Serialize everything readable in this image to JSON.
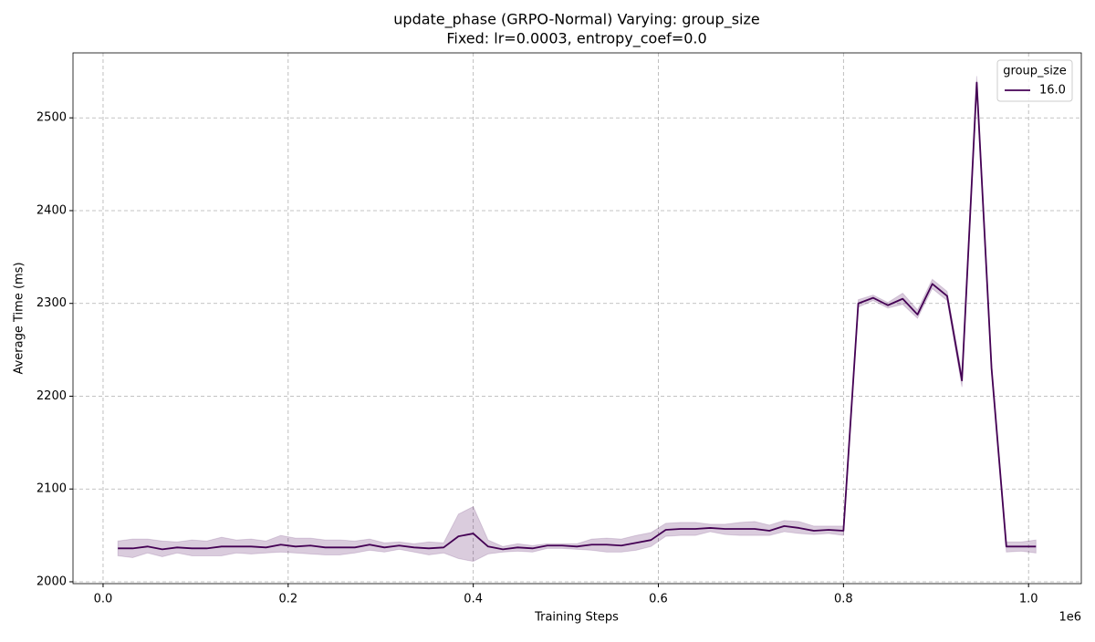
{
  "chart_data": {
    "type": "line",
    "title": "update_phase (GRPO-Normal) Varying: group_size",
    "subtitle": "Fixed: lr=0.0003, entropy_coef=0.0",
    "x_label": "Training Steps",
    "y_label": "Average Time (ms)",
    "x_offset_label": "1e6",
    "legend_title": "group_size",
    "legend_position": "upper right",
    "grid": true,
    "xlim": [
      -0.0325,
      1.057
    ],
    "ylim": [
      1998,
      2570
    ],
    "xticks": [
      {
        "value": 0,
        "label": "0.0"
      },
      0.2,
      0.4,
      0.6,
      0.8,
      {
        "value": 1,
        "label": "1.0"
      }
    ],
    "yticks": [
      2000,
      2100,
      2200,
      2300,
      2400,
      2500
    ],
    "x": [
      0.016,
      0.032,
      0.048,
      0.064,
      0.08,
      0.096,
      0.112,
      0.128,
      0.144,
      0.16,
      0.176,
      0.192,
      0.208,
      0.224,
      0.24,
      0.256,
      0.272,
      0.288,
      0.304,
      0.32,
      0.336,
      0.352,
      0.368,
      0.384,
      0.4,
      0.416,
      0.432,
      0.448,
      0.464,
      0.48,
      0.496,
      0.512,
      0.528,
      0.544,
      0.56,
      0.576,
      0.592,
      0.608,
      0.624,
      0.64,
      0.656,
      0.672,
      0.688,
      0.704,
      0.72,
      0.736,
      0.752,
      0.768,
      0.784,
      0.8,
      0.816,
      0.832,
      0.848,
      0.864,
      0.88,
      0.896,
      0.912,
      0.928,
      0.944,
      0.96,
      0.976,
      0.992,
      1.008
    ],
    "series": [
      {
        "name": "16.0",
        "color": "#440154",
        "values": [
          2036,
          2036,
          2038,
          2035,
          2037,
          2036,
          2036,
          2038,
          2038,
          2038,
          2037,
          2040,
          2038,
          2039,
          2037,
          2037,
          2037,
          2040,
          2037,
          2039,
          2037,
          2036,
          2037,
          2049,
          2052,
          2038,
          2035,
          2037,
          2036,
          2039,
          2039,
          2038,
          2040,
          2040,
          2039,
          2042,
          2045,
          2056,
          2057,
          2057,
          2058,
          2057,
          2057,
          2057,
          2055,
          2060,
          2058,
          2055,
          2056,
          2055,
          2300,
          2306,
          2298,
          2305,
          2288,
          2321,
          2308,
          2217,
          2538,
          2230,
          2038,
          2038,
          2038
        ],
        "lower": [
          2028,
          2026,
          2031,
          2027,
          2031,
          2028,
          2028,
          2028,
          2031,
          2030,
          2031,
          2032,
          2031,
          2030,
          2029,
          2029,
          2031,
          2034,
          2032,
          2035,
          2032,
          2029,
          2031,
          2025,
          2022,
          2030,
          2032,
          2033,
          2032,
          2036,
          2036,
          2035,
          2034,
          2032,
          2032,
          2034,
          2038,
          2049,
          2050,
          2050,
          2054,
          2051,
          2050,
          2050,
          2050,
          2054,
          2052,
          2051,
          2052,
          2050,
          2296,
          2303,
          2295,
          2299,
          2284,
          2316,
          2303,
          2210,
          2530,
          2225,
          2032,
          2033,
          2031
        ],
        "upper": [
          2044,
          2046,
          2046,
          2044,
          2043,
          2045,
          2044,
          2048,
          2045,
          2046,
          2044,
          2050,
          2047,
          2047,
          2045,
          2045,
          2044,
          2046,
          2042,
          2043,
          2041,
          2043,
          2042,
          2073,
          2081,
          2045,
          2038,
          2041,
          2039,
          2041,
          2041,
          2041,
          2046,
          2047,
          2046,
          2050,
          2053,
          2063,
          2064,
          2064,
          2062,
          2062,
          2064,
          2065,
          2061,
          2066,
          2065,
          2060,
          2060,
          2060,
          2304,
          2309,
          2301,
          2311,
          2293,
          2326,
          2313,
          2224,
          2545,
          2236,
          2043,
          2043,
          2045
        ]
      }
    ]
  }
}
